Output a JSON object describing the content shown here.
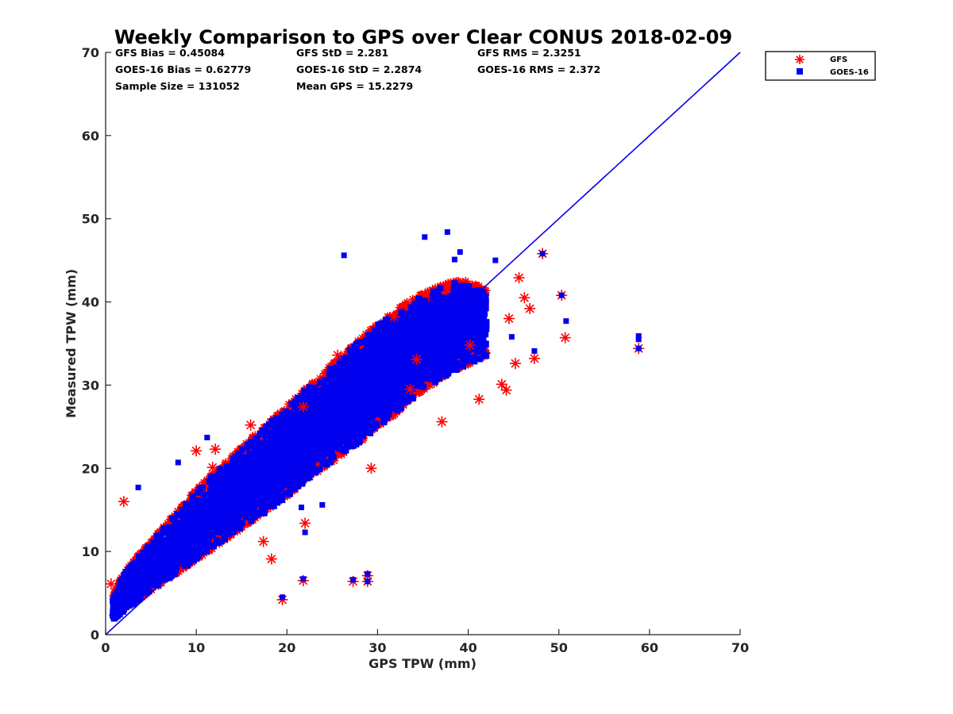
{
  "chart_data": {
    "type": "scatter",
    "title": "Weekly Comparison to GPS over Clear CONUS 2018-02-09",
    "xlabel": "GPS TPW (mm)",
    "ylabel": "Measured TPW (mm)",
    "xlim": [
      0,
      70
    ],
    "ylim": [
      0,
      70
    ],
    "xticks": [
      "0",
      "10",
      "20",
      "30",
      "40",
      "50",
      "60",
      "70"
    ],
    "yticks": [
      "0",
      "10",
      "20",
      "30",
      "40",
      "50",
      "60",
      "70"
    ],
    "grid": false,
    "legend_position": "top-right outside",
    "stats": [
      [
        "GFS Bias = 0.45084",
        "GFS StD = 2.281",
        "GFS RMS = 2.3251"
      ],
      [
        "GOES-16 Bias = 0.62779",
        "GOES-16 StD = 2.2874",
        "GOES-16 RMS = 2.372"
      ],
      [
        "Sample Size = 131052",
        "Mean GPS = 15.2279",
        ""
      ]
    ],
    "reference_line": {
      "name": "1:1",
      "color": "#0000ee",
      "points": [
        [
          0,
          0
        ],
        [
          70,
          70
        ]
      ]
    },
    "series": [
      {
        "name": "GFS",
        "marker": "asterisk",
        "color": "#ff0000",
        "outliers": [
          [
            58.8,
            34.4
          ],
          [
            48.2,
            45.8
          ],
          [
            50.7,
            35.7
          ],
          [
            50.3,
            40.8
          ],
          [
            47.3,
            33.2
          ],
          [
            45.2,
            32.6
          ],
          [
            44.2,
            29.4
          ],
          [
            43.7,
            30.1
          ],
          [
            41.2,
            28.3
          ],
          [
            45.6,
            42.9
          ],
          [
            46.2,
            40.5
          ],
          [
            46.8,
            39.2
          ],
          [
            44.5,
            38.0
          ],
          [
            40.2,
            34.8
          ],
          [
            19.5,
            4.2
          ],
          [
            21.8,
            6.5
          ],
          [
            27.3,
            6.4
          ],
          [
            28.9,
            6.4
          ],
          [
            28.9,
            7.1
          ],
          [
            22.0,
            13.4
          ],
          [
            12.1,
            22.3
          ],
          [
            10.0,
            22.1
          ],
          [
            11.8,
            20.1
          ],
          [
            2.0,
            16.0
          ],
          [
            0.6,
            6.1
          ],
          [
            18.3,
            9.1
          ],
          [
            17.4,
            11.2
          ],
          [
            29.3,
            20.0
          ],
          [
            37.1,
            25.6
          ],
          [
            33.6,
            29.5
          ],
          [
            34.3,
            33.1
          ],
          [
            31.8,
            38.2
          ],
          [
            25.6,
            33.6
          ],
          [
            21.8,
            27.4
          ],
          [
            16.0,
            25.2
          ]
        ],
        "cloud": [
          [
            0.8,
            2.0,
            4.5
          ],
          [
            2.0,
            3.0,
            7.5
          ],
          [
            4.0,
            4.5,
            10.0
          ],
          [
            6.0,
            6.0,
            12.5
          ],
          [
            8.0,
            7.5,
            15.0
          ],
          [
            10.0,
            9.0,
            17.5
          ],
          [
            12.0,
            10.5,
            19.5
          ],
          [
            14.0,
            12.0,
            21.5
          ],
          [
            16.0,
            13.5,
            23.5
          ],
          [
            18.0,
            15.0,
            25.5
          ],
          [
            20.0,
            16.5,
            27.5
          ],
          [
            22.0,
            18.5,
            29.5
          ],
          [
            24.0,
            20.0,
            31.5
          ],
          [
            26.0,
            21.5,
            33.5
          ],
          [
            28.0,
            23.0,
            35.5
          ],
          [
            30.0,
            25.0,
            37.5
          ],
          [
            32.0,
            26.5,
            39.0
          ],
          [
            34.0,
            28.5,
            40.5
          ],
          [
            36.0,
            30.0,
            41.5
          ],
          [
            38.0,
            31.5,
            42.5
          ],
          [
            40.0,
            32.5,
            42.5
          ],
          [
            42.0,
            33.5,
            41.5
          ]
        ]
      },
      {
        "name": "GOES-16",
        "marker": "square",
        "color": "#0000ee",
        "outliers": [
          [
            37.7,
            48.4
          ],
          [
            35.2,
            47.8
          ],
          [
            26.3,
            45.6
          ],
          [
            39.1,
            46.0
          ],
          [
            38.5,
            45.1
          ],
          [
            43.0,
            45.0
          ],
          [
            48.2,
            45.8
          ],
          [
            58.8,
            34.4
          ],
          [
            58.8,
            35.5
          ],
          [
            58.8,
            35.9
          ],
          [
            50.8,
            37.7
          ],
          [
            50.3,
            40.8
          ],
          [
            47.3,
            34.1
          ],
          [
            44.8,
            35.8
          ],
          [
            19.5,
            4.5
          ],
          [
            21.8,
            6.7
          ],
          [
            27.3,
            6.6
          ],
          [
            28.9,
            6.4
          ],
          [
            28.9,
            7.3
          ],
          [
            22.0,
            12.3
          ],
          [
            21.6,
            15.3
          ],
          [
            23.9,
            15.6
          ],
          [
            11.2,
            23.7
          ],
          [
            8.0,
            20.7
          ],
          [
            3.6,
            17.7
          ]
        ],
        "cloud": [
          [
            0.8,
            1.8,
            4.2
          ],
          [
            2.0,
            2.8,
            7.2
          ],
          [
            4.0,
            4.4,
            9.8
          ],
          [
            6.0,
            6.0,
            12.3
          ],
          [
            8.0,
            7.5,
            14.8
          ],
          [
            10.0,
            9.0,
            17.3
          ],
          [
            12.0,
            10.5,
            19.3
          ],
          [
            14.0,
            12.0,
            21.3
          ],
          [
            16.0,
            13.5,
            23.3
          ],
          [
            18.0,
            15.0,
            25.3
          ],
          [
            20.0,
            16.5,
            27.3
          ],
          [
            22.0,
            18.5,
            29.3
          ],
          [
            24.0,
            20.0,
            31.3
          ],
          [
            26.0,
            21.5,
            33.3
          ],
          [
            28.0,
            23.0,
            35.3
          ],
          [
            30.0,
            25.0,
            37.3
          ],
          [
            32.0,
            26.5,
            38.8
          ],
          [
            34.0,
            28.5,
            40.3
          ],
          [
            36.0,
            30.0,
            41.3
          ],
          [
            38.0,
            31.5,
            42.3
          ],
          [
            40.0,
            32.5,
            42.3
          ],
          [
            42.0,
            33.5,
            41.0
          ]
        ]
      }
    ]
  }
}
